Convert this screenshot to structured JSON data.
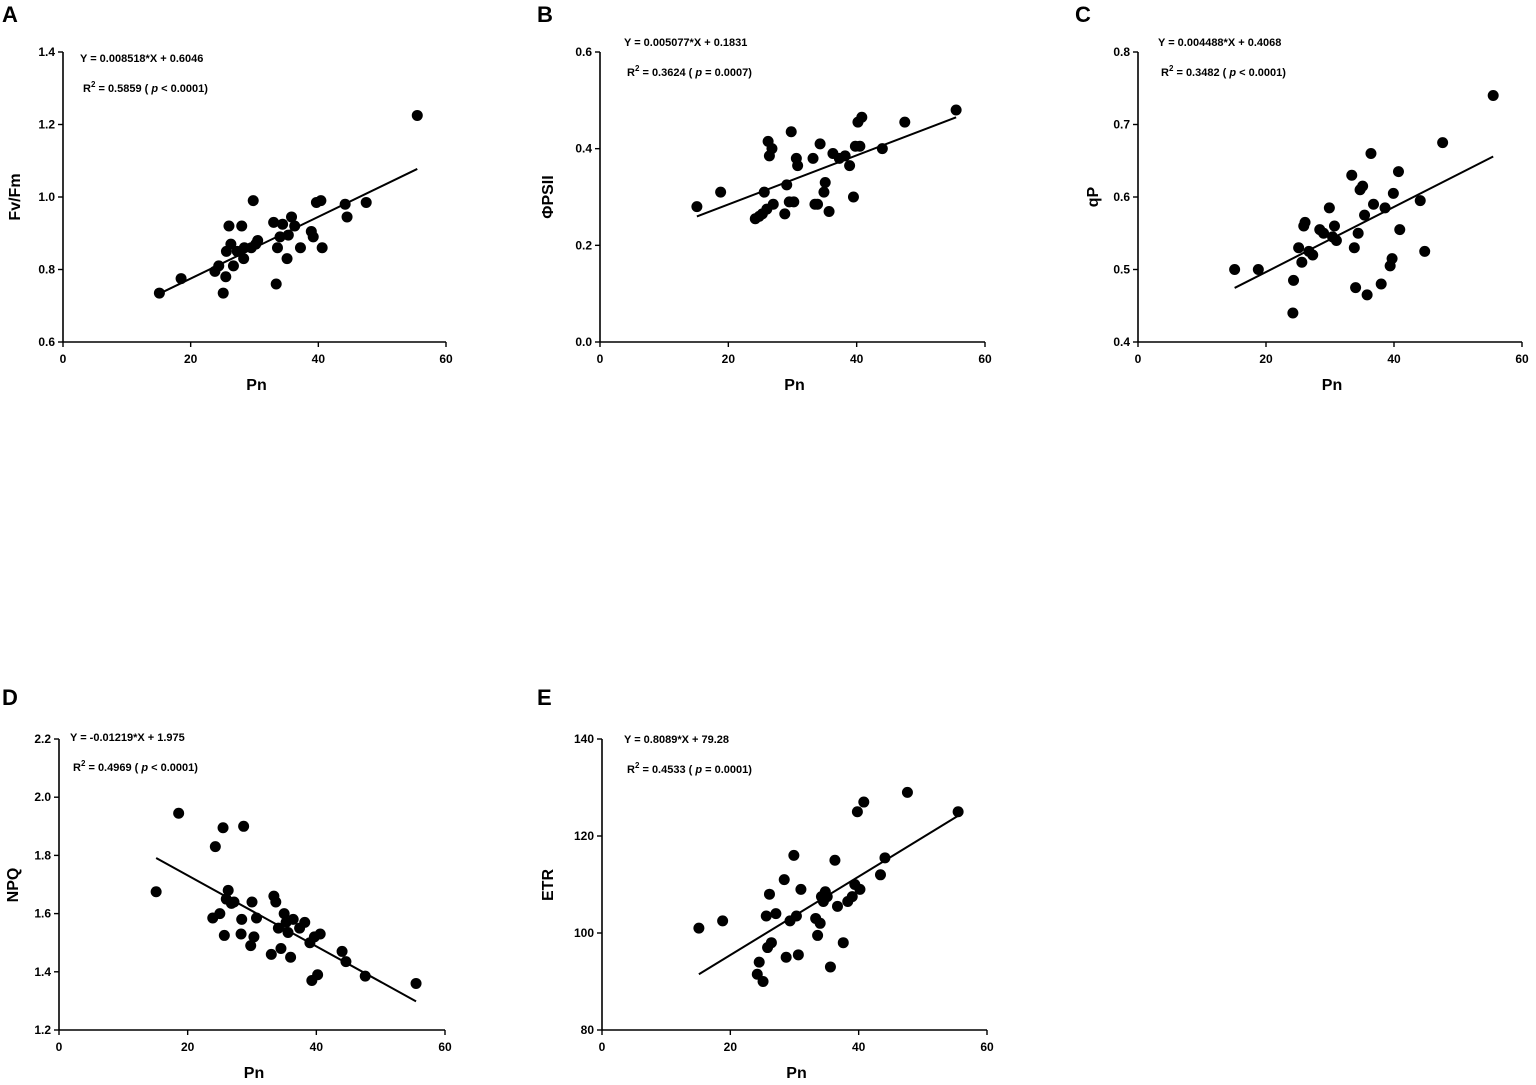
{
  "chart_data": [
    {
      "panel": "A",
      "type": "scatter",
      "xlabel": "Pn",
      "ylabel": "Fv/Fm",
      "xlim": [
        0,
        60
      ],
      "ylim": [
        0.6,
        1.4
      ],
      "xticks": [
        0,
        20,
        40,
        60
      ],
      "yticks": [
        0.6,
        0.8,
        1.0,
        1.2,
        1.4
      ],
      "xtick_labels": [
        "0",
        "20",
        "40",
        "60"
      ],
      "ytick_labels": [
        "0.6",
        "0.8",
        "1.0",
        "1.2",
        "1.4"
      ],
      "equation": "Y = 0.008518*X + 0.6046",
      "r2_label": "R",
      "r2_sup": "2",
      "r2_value": " = 0.5859 (",
      "p_symbol": "p",
      "p_value": "< 0.0001)",
      "fit": {
        "slope": 0.008518,
        "intercept": 0.6046,
        "x_range": [
          15.1,
          55.5
        ]
      },
      "points": [
        [
          15.1,
          0.735
        ],
        [
          18.5,
          0.775
        ],
        [
          23.8,
          0.795
        ],
        [
          24.4,
          0.81
        ],
        [
          25.1,
          0.735
        ],
        [
          25.5,
          0.78
        ],
        [
          25.6,
          0.85
        ],
        [
          26.0,
          0.92
        ],
        [
          26.3,
          0.87
        ],
        [
          26.7,
          0.81
        ],
        [
          27.3,
          0.85
        ],
        [
          28.0,
          0.92
        ],
        [
          28.3,
          0.83
        ],
        [
          28.4,
          0.86
        ],
        [
          29.5,
          0.86
        ],
        [
          29.8,
          0.99
        ],
        [
          30.2,
          0.87
        ],
        [
          30.5,
          0.88
        ],
        [
          33.0,
          0.93
        ],
        [
          33.4,
          0.76
        ],
        [
          33.6,
          0.86
        ],
        [
          34.0,
          0.89
        ],
        [
          34.4,
          0.925
        ],
        [
          35.1,
          0.83
        ],
        [
          35.3,
          0.895
        ],
        [
          35.8,
          0.945
        ],
        [
          36.3,
          0.92
        ],
        [
          37.2,
          0.86
        ],
        [
          38.9,
          0.905
        ],
        [
          39.2,
          0.89
        ],
        [
          39.7,
          0.985
        ],
        [
          40.4,
          0.99
        ],
        [
          40.6,
          0.86
        ],
        [
          44.2,
          0.98
        ],
        [
          44.5,
          0.945
        ],
        [
          47.5,
          0.985
        ],
        [
          55.5,
          1.225
        ]
      ]
    },
    {
      "panel": "B",
      "type": "scatter",
      "xlabel": "Pn",
      "ylabel": "ΦPSII",
      "xlim": [
        0,
        60
      ],
      "ylim": [
        0.0,
        0.6
      ],
      "xticks": [
        0,
        20,
        40,
        60
      ],
      "yticks": [
        0.0,
        0.2,
        0.4,
        0.6
      ],
      "xtick_labels": [
        "0",
        "20",
        "40",
        "60"
      ],
      "ytick_labels": [
        "0.0",
        "0.2",
        "0.4",
        "0.6"
      ],
      "equation": "Y = 0.005077*X + 0.1831",
      "r2_label": "R",
      "r2_sup": "2",
      "r2_value": " = 0.3624 (",
      "p_symbol": "p",
      "p_value": "= 0.0007)",
      "fit": {
        "slope": 0.005077,
        "intercept": 0.1831,
        "x_range": [
          15.1,
          55.5
        ]
      },
      "points": [
        [
          15.1,
          0.28
        ],
        [
          18.8,
          0.31
        ],
        [
          24.2,
          0.255
        ],
        [
          24.8,
          0.26
        ],
        [
          25.3,
          0.265
        ],
        [
          25.6,
          0.31
        ],
        [
          26.0,
          0.275
        ],
        [
          26.2,
          0.415
        ],
        [
          26.4,
          0.385
        ],
        [
          26.8,
          0.4
        ],
        [
          27.0,
          0.285
        ],
        [
          28.8,
          0.265
        ],
        [
          29.1,
          0.325
        ],
        [
          29.5,
          0.29
        ],
        [
          29.8,
          0.435
        ],
        [
          30.2,
          0.29
        ],
        [
          30.6,
          0.38
        ],
        [
          30.8,
          0.365
        ],
        [
          33.2,
          0.38
        ],
        [
          33.5,
          0.285
        ],
        [
          33.9,
          0.285
        ],
        [
          34.3,
          0.41
        ],
        [
          34.9,
          0.31
        ],
        [
          35.1,
          0.33
        ],
        [
          35.7,
          0.27
        ],
        [
          36.3,
          0.39
        ],
        [
          37.3,
          0.38
        ],
        [
          38.2,
          0.385
        ],
        [
          38.9,
          0.365
        ],
        [
          39.5,
          0.3
        ],
        [
          39.8,
          0.405
        ],
        [
          40.2,
          0.455
        ],
        [
          40.5,
          0.405
        ],
        [
          40.8,
          0.465
        ],
        [
          44.0,
          0.4
        ],
        [
          47.5,
          0.455
        ],
        [
          55.5,
          0.48
        ]
      ]
    },
    {
      "panel": "C",
      "type": "scatter",
      "xlabel": "Pn",
      "ylabel": "qP",
      "xlim": [
        0,
        60
      ],
      "ylim": [
        0.4,
        0.8
      ],
      "xticks": [
        0,
        20,
        40,
        60
      ],
      "yticks": [
        0.4,
        0.5,
        0.6,
        0.7,
        0.8
      ],
      "xtick_labels": [
        "0",
        "20",
        "40",
        "60"
      ],
      "ytick_labels": [
        "0.4",
        "0.5",
        "0.6",
        "0.7",
        "0.8"
      ],
      "equation": "Y = 0.004488*X + 0.4068",
      "r2_label": "R",
      "r2_sup": "2",
      "r2_value": " = 0.3482 (",
      "p_symbol": "p",
      "p_value": "< 0.0001)",
      "fit": {
        "slope": 0.004488,
        "intercept": 0.4068,
        "x_range": [
          15.1,
          55.5
        ]
      },
      "points": [
        [
          15.1,
          0.5
        ],
        [
          18.8,
          0.5
        ],
        [
          24.2,
          0.44
        ],
        [
          24.3,
          0.485
        ],
        [
          25.1,
          0.53
        ],
        [
          25.6,
          0.51
        ],
        [
          25.9,
          0.56
        ],
        [
          26.1,
          0.565
        ],
        [
          26.7,
          0.525
        ],
        [
          27.3,
          0.52
        ],
        [
          28.4,
          0.555
        ],
        [
          29.0,
          0.55
        ],
        [
          29.9,
          0.585
        ],
        [
          30.4,
          0.545
        ],
        [
          30.7,
          0.56
        ],
        [
          31.0,
          0.54
        ],
        [
          33.4,
          0.63
        ],
        [
          33.8,
          0.53
        ],
        [
          34.0,
          0.475
        ],
        [
          34.4,
          0.55
        ],
        [
          34.7,
          0.61
        ],
        [
          35.1,
          0.615
        ],
        [
          35.4,
          0.575
        ],
        [
          35.8,
          0.465
        ],
        [
          36.4,
          0.66
        ],
        [
          36.8,
          0.59
        ],
        [
          38.0,
          0.48
        ],
        [
          38.6,
          0.585
        ],
        [
          39.4,
          0.505
        ],
        [
          39.7,
          0.515
        ],
        [
          39.9,
          0.605
        ],
        [
          40.7,
          0.635
        ],
        [
          40.9,
          0.555
        ],
        [
          44.1,
          0.595
        ],
        [
          44.8,
          0.525
        ],
        [
          47.6,
          0.675
        ],
        [
          55.5,
          0.74
        ]
      ]
    },
    {
      "panel": "D",
      "type": "scatter",
      "xlabel": "Pn",
      "ylabel": "NPQ",
      "xlim": [
        0,
        60
      ],
      "ylim": [
        1.2,
        2.2
      ],
      "xticks": [
        0,
        20,
        40,
        60
      ],
      "yticks": [
        1.2,
        1.4,
        1.6,
        1.8,
        2.0,
        2.2
      ],
      "xtick_labels": [
        "0",
        "20",
        "40",
        "60"
      ],
      "ytick_labels": [
        "1.2",
        "1.4",
        "1.6",
        "1.8",
        "2.0",
        "2.2"
      ],
      "equation": "Y = -0.01219*X + 1.975",
      "r2_label": "R",
      "r2_sup": "2",
      "r2_value": " = 0.4969 (",
      "p_symbol": "p",
      "p_value": "< 0.0001)",
      "fit": {
        "slope": -0.01219,
        "intercept": 1.975,
        "x_range": [
          15.1,
          55.5
        ]
      },
      "points": [
        [
          15.1,
          1.675
        ],
        [
          18.6,
          1.945
        ],
        [
          23.9,
          1.585
        ],
        [
          24.3,
          1.83
        ],
        [
          25.0,
          1.6
        ],
        [
          25.5,
          1.895
        ],
        [
          25.7,
          1.525
        ],
        [
          26.0,
          1.65
        ],
        [
          26.3,
          1.68
        ],
        [
          26.8,
          1.635
        ],
        [
          27.2,
          1.64
        ],
        [
          28.3,
          1.53
        ],
        [
          28.4,
          1.58
        ],
        [
          28.7,
          1.9
        ],
        [
          29.8,
          1.49
        ],
        [
          30.0,
          1.64
        ],
        [
          30.3,
          1.52
        ],
        [
          30.7,
          1.585
        ],
        [
          33.0,
          1.46
        ],
        [
          33.4,
          1.66
        ],
        [
          33.7,
          1.64
        ],
        [
          34.1,
          1.55
        ],
        [
          34.5,
          1.48
        ],
        [
          35.0,
          1.6
        ],
        [
          35.3,
          1.57
        ],
        [
          35.6,
          1.535
        ],
        [
          36.0,
          1.45
        ],
        [
          36.4,
          1.58
        ],
        [
          37.4,
          1.55
        ],
        [
          38.2,
          1.57
        ],
        [
          39.0,
          1.5
        ],
        [
          39.3,
          1.37
        ],
        [
          39.7,
          1.52
        ],
        [
          40.2,
          1.39
        ],
        [
          40.6,
          1.53
        ],
        [
          44.0,
          1.47
        ],
        [
          44.6,
          1.435
        ],
        [
          47.6,
          1.385
        ],
        [
          55.5,
          1.36
        ]
      ]
    },
    {
      "panel": "E",
      "type": "scatter",
      "xlabel": "Pn",
      "ylabel": "ETR",
      "xlim": [
        0,
        60
      ],
      "ylim": [
        80,
        140
      ],
      "xticks": [
        0,
        20,
        40,
        60
      ],
      "yticks": [
        80,
        100,
        120,
        140
      ],
      "xtick_labels": [
        "0",
        "20",
        "40",
        "60"
      ],
      "ytick_labels": [
        "80",
        "100",
        "120",
        "140"
      ],
      "equation": "Y = 0.8089*X + 79.28",
      "r2_label": "R",
      "r2_sup": "2",
      "r2_value": " = 0.4533 (",
      "p_symbol": "p",
      "p_value": "= 0.0001)",
      "fit": {
        "slope": 0.8089,
        "intercept": 79.28,
        "x_range": [
          15.1,
          55.5
        ]
      },
      "points": [
        [
          15.1,
          101
        ],
        [
          18.8,
          102.5
        ],
        [
          24.2,
          91.5
        ],
        [
          24.5,
          94
        ],
        [
          25.1,
          90
        ],
        [
          25.6,
          103.5
        ],
        [
          25.8,
          97
        ],
        [
          26.1,
          108
        ],
        [
          26.4,
          98
        ],
        [
          27.1,
          104
        ],
        [
          28.4,
          111
        ],
        [
          28.7,
          95
        ],
        [
          29.3,
          102.5
        ],
        [
          29.9,
          116
        ],
        [
          30.3,
          103.5
        ],
        [
          30.6,
          95.5
        ],
        [
          31.0,
          109
        ],
        [
          33.3,
          103
        ],
        [
          33.6,
          99.5
        ],
        [
          34.0,
          102
        ],
        [
          34.2,
          107.5
        ],
        [
          34.5,
          106.5
        ],
        [
          34.8,
          108.5
        ],
        [
          35.1,
          107.5
        ],
        [
          35.6,
          93
        ],
        [
          36.3,
          115
        ],
        [
          36.7,
          105.5
        ],
        [
          37.6,
          98
        ],
        [
          38.3,
          106.5
        ],
        [
          39.0,
          107.5
        ],
        [
          39.4,
          110
        ],
        [
          39.8,
          125
        ],
        [
          40.2,
          109
        ],
        [
          40.8,
          127
        ],
        [
          43.4,
          112
        ],
        [
          44.1,
          115.5
        ],
        [
          47.6,
          129
        ],
        [
          55.5,
          125
        ]
      ]
    }
  ]
}
